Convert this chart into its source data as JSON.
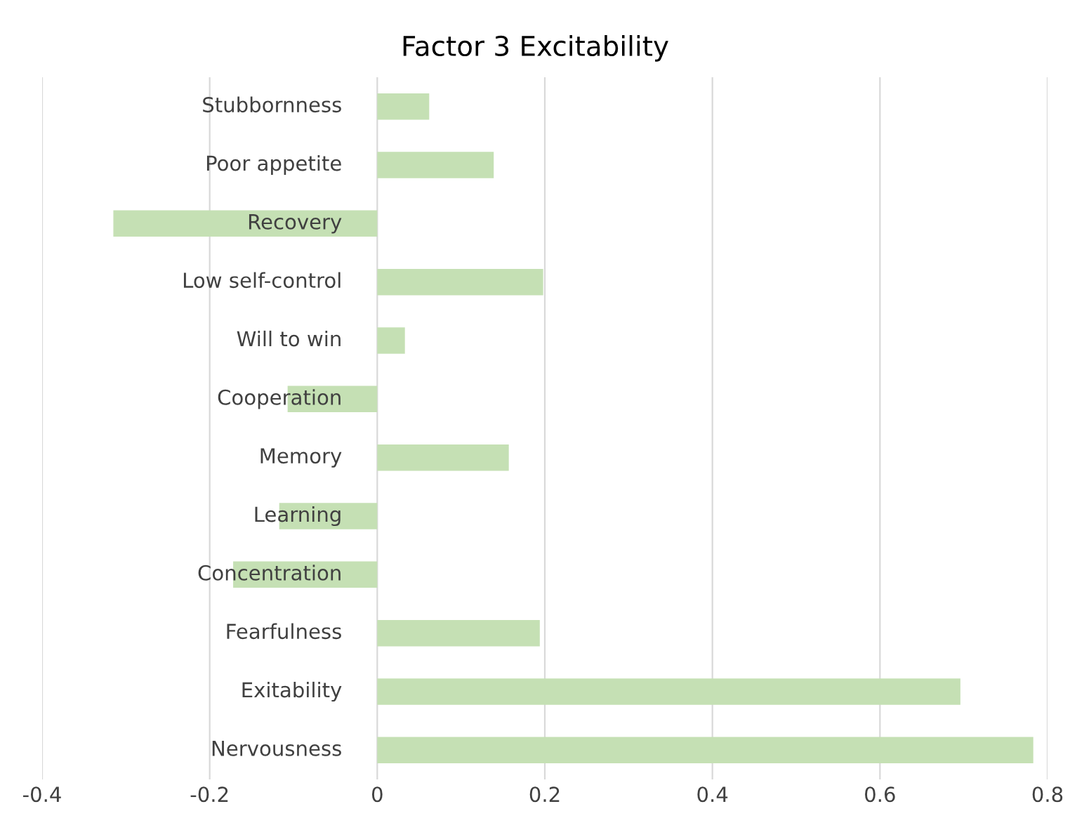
{
  "chart_data": {
    "type": "bar",
    "orientation": "horizontal",
    "title": "Factor 3 Excitability",
    "categories": [
      "Stubbornness",
      "Poor appetite",
      "Recovery",
      "Low self-control",
      "Will to win",
      "Cooperation",
      "Memory",
      "Learning",
      "Concentration",
      "Fearfulness",
      "Exitability",
      "Nervousness"
    ],
    "values": [
      0.062,
      0.139,
      -0.315,
      0.198,
      0.033,
      -0.107,
      0.157,
      -0.117,
      -0.172,
      0.194,
      0.696,
      0.783
    ],
    "color": "#c5e0b4",
    "xlim": [
      -0.4,
      0.8
    ],
    "xticks": [
      -0.4,
      -0.2,
      0,
      0.2,
      0.4,
      0.6,
      0.8
    ],
    "grid": "x"
  }
}
